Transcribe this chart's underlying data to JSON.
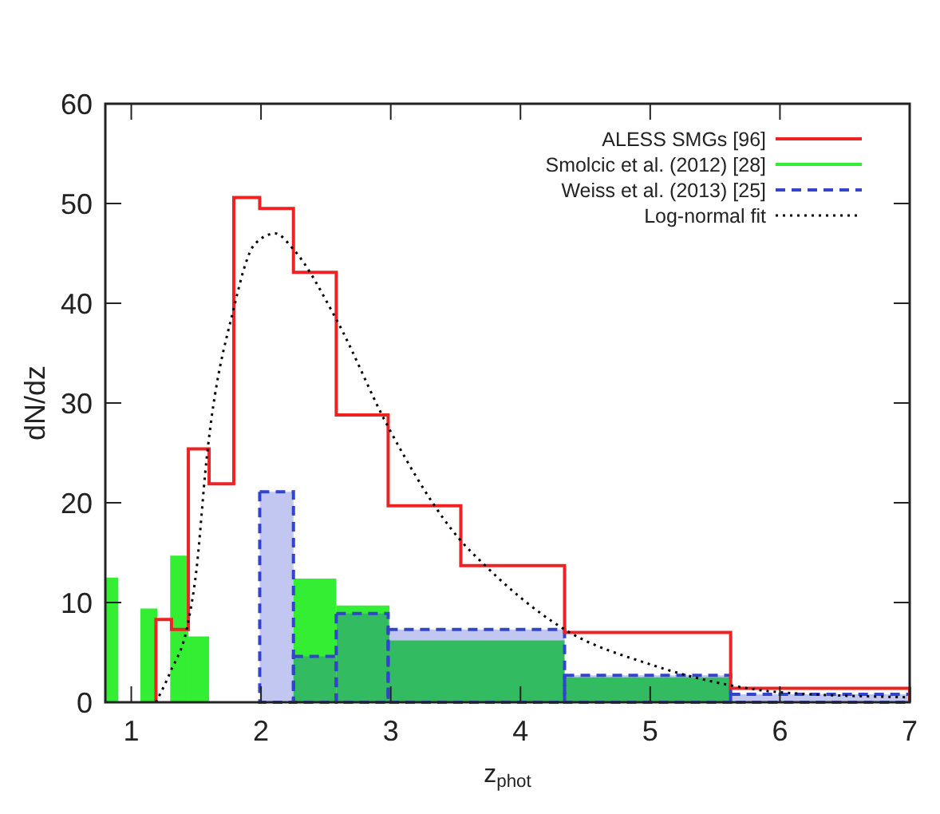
{
  "chart_data": {
    "type": "histogram",
    "xlabel": "z$_{phot}$",
    "ylabel": "dN/dz",
    "xlim": [
      0.8,
      7
    ],
    "ylim": [
      0,
      60
    ],
    "xticks": [
      1,
      2,
      3,
      4,
      5,
      6,
      7
    ],
    "yticks": [
      0,
      10,
      20,
      30,
      40,
      50,
      60
    ],
    "legend": "top right",
    "grid": false,
    "series": [
      {
        "name": "ALESS SMGs [96]",
        "color": "#ee2222",
        "line_style": "solid",
        "bins": [
          1.19,
          1.31,
          1.44,
          1.6,
          1.79,
          1.99,
          2.25,
          2.58,
          2.98,
          3.54,
          4.34,
          5.62,
          7
        ],
        "values": [
          8.3,
          7.3,
          25.4,
          21.9,
          50.6,
          49.5,
          43.1,
          28.8,
          19.7,
          13.7,
          7.0,
          1.4
        ]
      },
      {
        "name": "Smolcic et al. (2012) [28]",
        "color": "#33ee33",
        "bins": [
          0.8,
          0.9,
          1.07,
          1.2,
          1.3,
          1.44,
          1.6,
          2.25,
          2.58,
          2.99,
          4.34,
          5.62
        ],
        "values": [
          12.5,
          0,
          9.4,
          0,
          14.7,
          6.6,
          0,
          12.4,
          9.7,
          6.2,
          2.5
        ]
      },
      {
        "name": "Weiss et al. (2013) [25]",
        "color": "#3344cc",
        "line_style": "dashed",
        "bins": [
          1.99,
          2.25,
          2.58,
          2.98,
          4.34,
          5.62,
          7
        ],
        "values": [
          21.1,
          4.6,
          8.9,
          7.3,
          2.7,
          0.8
        ]
      },
      {
        "name": "Log-normal fit",
        "type": "line",
        "color": "#000000",
        "line_style": "dotted",
        "x": [
          1.19,
          1.3,
          1.44,
          1.5,
          1.58,
          1.79,
          1.95,
          2.11,
          2.25,
          2.58,
          2.98,
          3.54,
          3.72,
          4.0,
          4.34,
          5.0,
          5.62,
          6.0,
          7.0
        ],
        "values": [
          0,
          3,
          8.1,
          13,
          24.3,
          39.5,
          45.9,
          47.0,
          45.4,
          38.4,
          27.6,
          16.2,
          13.8,
          10.5,
          7.3,
          3.8,
          1.7,
          1.0,
          0.5
        ]
      }
    ]
  }
}
